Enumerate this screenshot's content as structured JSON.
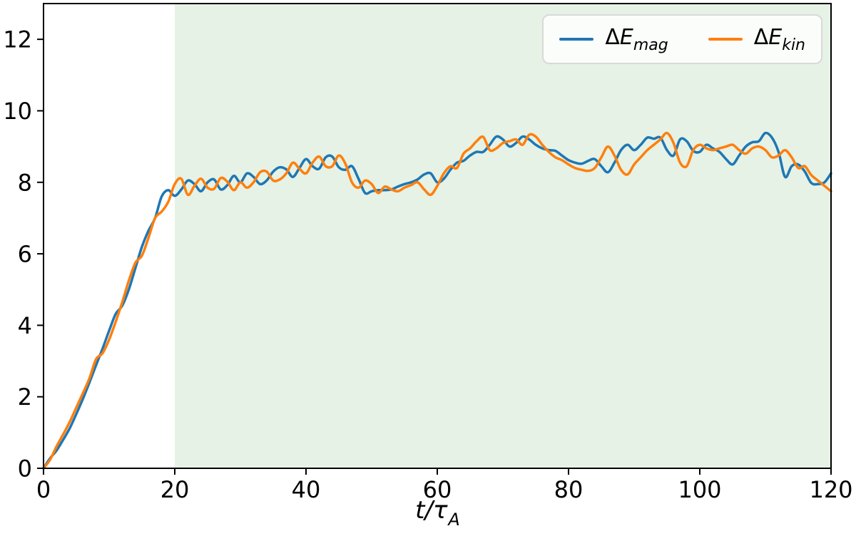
{
  "figure": {
    "background": "#ffffff",
    "axis_color": "#000000",
    "tick_fontsize": 32
  },
  "chart_data": {
    "type": "line",
    "title": "",
    "xlabel": "t/τ_A",
    "xlabel_parts": {
      "main": "t/τ",
      "sub": "A"
    },
    "ylabel": "",
    "xlim": [
      0,
      120
    ],
    "ylim": [
      0,
      13
    ],
    "xticks": [
      0,
      20,
      40,
      60,
      80,
      100,
      120
    ],
    "yticks": [
      0,
      2,
      4,
      6,
      8,
      10,
      12
    ],
    "grid": false,
    "shaded_region": {
      "x_start": 20,
      "x_end": 120,
      "color": "rgba(0,128,0,0.10)"
    },
    "legend": {
      "position": "upper right"
    },
    "x": [
      0,
      1,
      2,
      3,
      4,
      5,
      6,
      7,
      8,
      9,
      10,
      11,
      12,
      13,
      14,
      15,
      16,
      17,
      18,
      19,
      20,
      21,
      22,
      23,
      24,
      25,
      26,
      27,
      28,
      29,
      30,
      31,
      32,
      33,
      34,
      35,
      36,
      37,
      38,
      39,
      40,
      41,
      42,
      43,
      44,
      45,
      46,
      47,
      48,
      49,
      50,
      51,
      52,
      53,
      54,
      55,
      56,
      57,
      58,
      59,
      60,
      61,
      62,
      63,
      64,
      65,
      66,
      67,
      68,
      69,
      70,
      71,
      72,
      73,
      74,
      75,
      76,
      77,
      78,
      79,
      80,
      81,
      82,
      83,
      84,
      85,
      86,
      87,
      88,
      89,
      90,
      91,
      92,
      93,
      94,
      95,
      96,
      97,
      98,
      99,
      100,
      101,
      102,
      103,
      104,
      105,
      106,
      107,
      108,
      109,
      110,
      111,
      112,
      113,
      114,
      115,
      116,
      117,
      118,
      119,
      120
    ],
    "series": [
      {
        "id": "delta-e-mag",
        "label": "ΔE_mag",
        "label_parts": {
          "delta": "Δ",
          "symbol": "E",
          "sub": "mag"
        },
        "color": "#1f77b4",
        "y": [
          0.0,
          0.28,
          0.5,
          0.8,
          1.12,
          1.52,
          1.94,
          2.4,
          2.88,
          3.35,
          3.85,
          4.32,
          4.55,
          5.0,
          5.6,
          6.2,
          6.65,
          7.0,
          7.6,
          7.78,
          7.62,
          7.8,
          8.05,
          7.95,
          7.75,
          8.0,
          8.08,
          7.8,
          7.92,
          8.18,
          8.0,
          8.25,
          8.15,
          7.95,
          8.05,
          8.3,
          8.42,
          8.36,
          8.15,
          8.4,
          8.65,
          8.45,
          8.38,
          8.7,
          8.72,
          8.42,
          8.35,
          8.45,
          8.1,
          7.7,
          7.75,
          7.78,
          7.78,
          7.8,
          7.88,
          7.95,
          8.0,
          8.08,
          8.22,
          8.25,
          8.0,
          8.1,
          8.35,
          8.55,
          8.6,
          8.75,
          8.85,
          8.85,
          9.05,
          9.28,
          9.2,
          9.0,
          9.1,
          9.28,
          9.2,
          9.05,
          8.95,
          8.9,
          8.88,
          8.75,
          8.62,
          8.55,
          8.52,
          8.6,
          8.65,
          8.45,
          8.28,
          8.55,
          8.9,
          9.05,
          8.9,
          9.05,
          9.25,
          9.22,
          9.25,
          8.9,
          8.75,
          9.2,
          9.15,
          8.88,
          8.85,
          9.05,
          8.95,
          8.85,
          8.65,
          8.5,
          8.75,
          9.0,
          9.12,
          9.15,
          9.38,
          9.25,
          8.85,
          8.15,
          8.45,
          8.5,
          8.3,
          7.98,
          7.95,
          8.0,
          8.25
        ]
      },
      {
        "id": "delta-e-kin",
        "label": "ΔE_kin",
        "label_parts": {
          "delta": "Δ",
          "symbol": "E",
          "sub": "kin"
        },
        "color": "#ff7f0e",
        "y": [
          0.0,
          0.24,
          0.62,
          0.95,
          1.3,
          1.7,
          2.1,
          2.52,
          3.05,
          3.22,
          3.6,
          4.1,
          4.65,
          5.25,
          5.75,
          5.95,
          6.45,
          7.0,
          7.18,
          7.45,
          7.95,
          8.1,
          7.65,
          7.9,
          8.1,
          7.85,
          7.82,
          8.12,
          8.02,
          7.78,
          8.0,
          7.85,
          8.0,
          8.28,
          8.3,
          8.05,
          8.08,
          8.25,
          8.55,
          8.38,
          8.25,
          8.55,
          8.72,
          8.45,
          8.45,
          8.75,
          8.52,
          8.0,
          7.85,
          8.05,
          7.95,
          7.7,
          7.88,
          7.8,
          7.75,
          7.85,
          7.92,
          8.0,
          7.8,
          7.65,
          7.9,
          8.25,
          8.45,
          8.4,
          8.8,
          8.95,
          9.15,
          9.27,
          8.9,
          8.95,
          9.1,
          9.15,
          9.2,
          9.05,
          9.33,
          9.28,
          9.05,
          8.85,
          8.7,
          8.62,
          8.5,
          8.4,
          8.35,
          8.32,
          8.4,
          8.7,
          9.0,
          8.75,
          8.35,
          8.22,
          8.5,
          8.7,
          8.9,
          9.05,
          9.2,
          9.38,
          9.1,
          8.55,
          8.45,
          8.9,
          9.05,
          8.95,
          8.9,
          8.95,
          9.0,
          9.05,
          8.9,
          8.8,
          8.95,
          9.0,
          8.9,
          8.7,
          8.75,
          8.9,
          8.7,
          8.4,
          8.45,
          8.2,
          8.05,
          7.9,
          7.75
        ]
      }
    ]
  }
}
